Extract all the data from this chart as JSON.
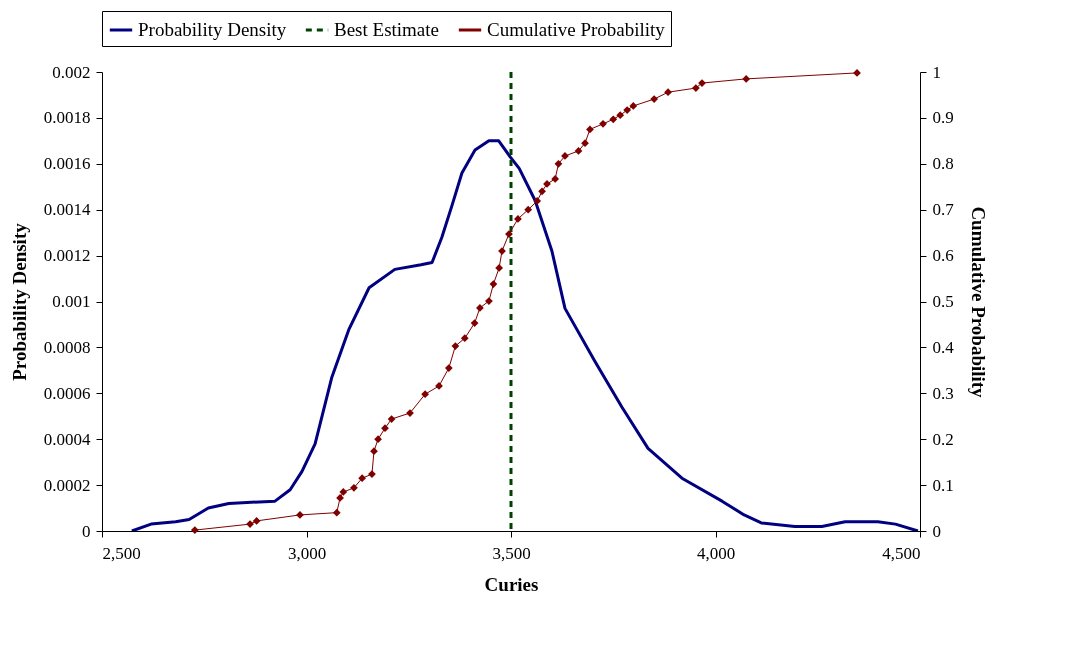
{
  "chart_data": {
    "type": "line",
    "xlabel": "Curies",
    "ylabel": "Probability Density",
    "y2label": "Cumulative Probability",
    "xlim": [
      2500,
      4500
    ],
    "xticks": [
      {
        "value": 2500,
        "label": "2,500"
      },
      {
        "value": 3000,
        "label": "3,000"
      },
      {
        "value": 3500,
        "label": "3,500"
      },
      {
        "value": 4000,
        "label": "4,000"
      },
      {
        "value": 4500,
        "label": "4,500"
      }
    ],
    "ylim": [
      0,
      0.002
    ],
    "yticks": [
      0,
      0.0002,
      0.0004,
      0.0006,
      0.0008,
      0.001,
      0.0012,
      0.0014,
      0.0016,
      0.0018,
      0.002
    ],
    "y2lim": [
      0,
      1
    ],
    "y2ticks": [
      0,
      0.1,
      0.2,
      0.3,
      0.4,
      0.5,
      0.6,
      0.7,
      0.8,
      0.9,
      1
    ],
    "legend": "top",
    "grid": false,
    "line_style": "solid",
    "series": [
      {
        "name": "Probability Density",
        "color": "#000080",
        "marker": "none",
        "x": [
          2573,
          2620,
          2680,
          2713,
          2760,
          2810,
          2923,
          2960,
          2989,
          3021,
          3062,
          3104,
          3153,
          3216,
          3280,
          3307,
          3331,
          3356,
          3380,
          3412,
          3446,
          3470,
          3498,
          3520,
          3559,
          3600,
          3632,
          3705,
          3771,
          3835,
          3918,
          4016,
          4070,
          4112,
          4194,
          4260,
          4317,
          4397,
          4440,
          4495
        ],
        "values": [
          0,
          3e-05,
          4e-05,
          5e-05,
          0.0001,
          0.00012,
          0.00013,
          0.00018,
          0.00026,
          0.00038,
          0.00067,
          0.00088,
          0.00106,
          0.00114,
          0.00116,
          0.00117,
          0.00128,
          0.00142,
          0.00156,
          0.00166,
          0.0017,
          0.0017,
          0.00163,
          0.00158,
          0.00144,
          0.00122,
          0.00097,
          0.00074,
          0.00054,
          0.00036,
          0.00023,
          0.00013,
          7e-05,
          3.5e-05,
          2e-05,
          2e-05,
          4e-05,
          4e-05,
          3e-05,
          0
        ]
      },
      {
        "name": "Cumulative Probability",
        "color": "#800000",
        "marker": "diamond",
        "axis": "y2",
        "x": [
          2727,
          2862,
          2878,
          2984,
          3074,
          3082,
          3090,
          3116,
          3136,
          3160,
          3165,
          3175,
          3192,
          3208,
          3253,
          3290,
          3324,
          3348,
          3364,
          3387,
          3411,
          3424,
          3446,
          3457,
          3471,
          3478,
          3495,
          3517,
          3542,
          3564,
          3576,
          3588,
          3608,
          3616,
          3632,
          3665,
          3681,
          3693,
          3725,
          3750,
          3767,
          3784,
          3799,
          3850,
          3884,
          3952,
          3967,
          4075,
          4346
        ],
        "values": [
          0.002,
          0.015,
          0.022,
          0.035,
          0.04,
          0.072,
          0.085,
          0.094,
          0.115,
          0.124,
          0.174,
          0.2,
          0.224,
          0.244,
          0.257,
          0.298,
          0.316,
          0.355,
          0.403,
          0.42,
          0.453,
          0.486,
          0.501,
          0.538,
          0.573,
          0.61,
          0.647,
          0.68,
          0.7,
          0.719,
          0.74,
          0.756,
          0.767,
          0.8,
          0.817,
          0.828,
          0.845,
          0.875,
          0.887,
          0.897,
          0.906,
          0.917,
          0.926,
          0.941,
          0.956,
          0.965,
          0.976,
          0.985,
          0.998
        ]
      }
    ],
    "ref_lines": [
      {
        "axis": "x",
        "value": 3500,
        "label": "Best Estimate",
        "color": "#004000",
        "line_style": "dashed"
      }
    ]
  }
}
